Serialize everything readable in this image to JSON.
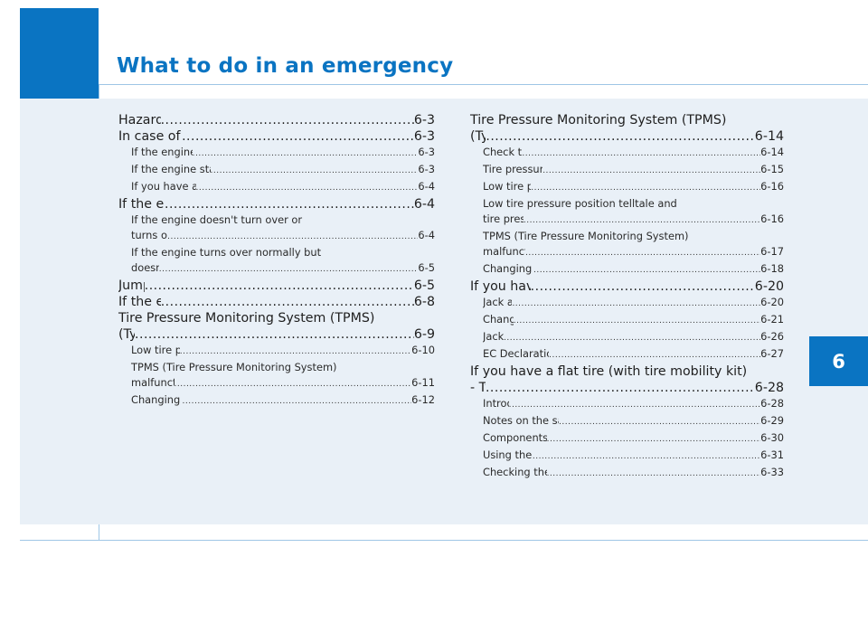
{
  "title": "What to do in an emergency",
  "chapter_tab": "6",
  "left_column": [
    {
      "level": "main",
      "lines": [],
      "title": "Hazard warning flasher ",
      "page": "6-3"
    },
    {
      "level": "main",
      "lines": [],
      "title": "In case of an emergency while driving ",
      "page": "6-3"
    },
    {
      "level": "sub",
      "lines": [],
      "title": "If the engine stalls while driving ",
      "page": "6-3"
    },
    {
      "level": "sub",
      "lines": [],
      "title": "If the engine stalls at a crossroad or crossing ",
      "page": "6-3"
    },
    {
      "level": "sub",
      "lines": [],
      "title": "If you have a flat tire while driving",
      "page": "6-4"
    },
    {
      "level": "main",
      "lines": [],
      "title": "If the engine will not start ",
      "page": "6-4"
    },
    {
      "level": "sub",
      "lines": [
        "If the engine doesn't turn over or"
      ],
      "title": "turns over slowly",
      "page": "6-4"
    },
    {
      "level": "sub",
      "lines": [
        "If the engine turns over normally but"
      ],
      "title": "doesn't start ",
      "page": "6-5"
    },
    {
      "level": "main",
      "lines": [],
      "title": "Jump starting ",
      "page": "6-5"
    },
    {
      "level": "main",
      "lines": [],
      "title": "If the engine overheats ",
      "page": "6-8"
    },
    {
      "level": "main",
      "lines": [
        "Tire Pressure Monitoring System (TPMS)"
      ],
      "title": "(Type A)",
      "page": "6-9"
    },
    {
      "level": "sub",
      "lines": [],
      "title": "Low tire pressure telltale ",
      "page": "6-10"
    },
    {
      "level": "sub",
      "lines": [
        "TPMS (Tire Pressure Monitoring System)"
      ],
      "title": "malfunction indicator ",
      "page": "6-11"
    },
    {
      "level": "sub",
      "lines": [],
      "title": "Changing a tire with TPMS",
      "page": "6-12"
    }
  ],
  "right_column": [
    {
      "level": "main",
      "lines": [
        "Tire Pressure Monitoring System (TPMS)"
      ],
      "title": "(Type B)",
      "page": "6-14"
    },
    {
      "level": "sub",
      "lines": [],
      "title": "Check tire pressure ",
      "page": "6-14"
    },
    {
      "level": "sub",
      "lines": [],
      "title": "Tire pressure monitoring system ",
      "page": "6-15"
    },
    {
      "level": "sub",
      "lines": [],
      "title": "Low tire pressure telltale ",
      "page": "6-16"
    },
    {
      "level": "sub",
      "lines": [
        "Low tire pressure position telltale and"
      ],
      "title": "tire pressure telltale ",
      "page": "6-16"
    },
    {
      "level": "sub",
      "lines": [
        "TPMS (Tire Pressure Monitoring System)"
      ],
      "title": "malfunction indicator ",
      "page": "6-17"
    },
    {
      "level": "sub",
      "lines": [],
      "title": "Changing a tire with TPMS",
      "page": "6-18"
    },
    {
      "level": "main",
      "lines": [],
      "title": "If you have a flat tire (with spare tire)",
      "page": "6-20"
    },
    {
      "level": "sub",
      "lines": [],
      "title": "Jack and tools ",
      "page": "6-20"
    },
    {
      "level": "sub",
      "lines": [],
      "title": "Changing tires ",
      "page": "6-21"
    },
    {
      "level": "sub",
      "lines": [],
      "title": "Jack label ",
      "page": "6-26"
    },
    {
      "level": "sub",
      "lines": [],
      "title": "EC Declaration of conformity for Jack",
      "page": "6-27"
    },
    {
      "level": "main",
      "lines": [
        "If you have a flat tire (with tire mobility kit)"
      ],
      "title": "- Type A ",
      "page": "6-28"
    },
    {
      "level": "sub",
      "lines": [],
      "title": "Introduction ",
      "page": "6-28"
    },
    {
      "level": "sub",
      "lines": [],
      "title": "Notes on the safe use of the Tire Mobility Kit",
      "page": "6-29"
    },
    {
      "level": "sub",
      "lines": [],
      "title": "Components of the Tire Mobility Kit ",
      "page": "6-30"
    },
    {
      "level": "sub",
      "lines": [],
      "title": "Using the Tire Mobility Kit",
      "page": "6-31"
    },
    {
      "level": "sub",
      "lines": [],
      "title": "Checking the tire inflation pressure ",
      "page": "6-33"
    }
  ]
}
